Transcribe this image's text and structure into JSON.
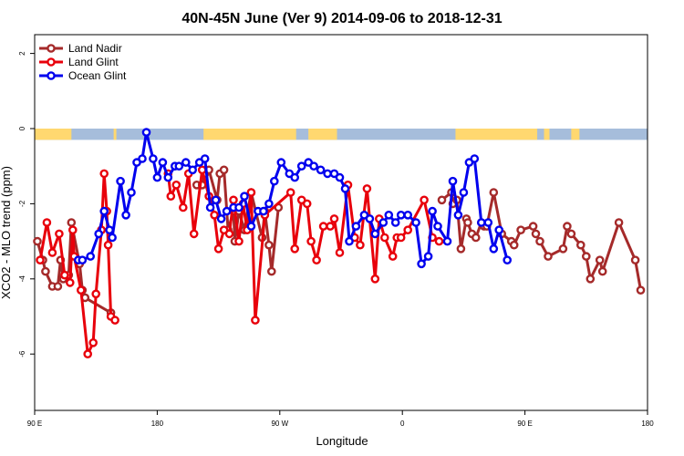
{
  "chart_data": {
    "type": "line",
    "title": "40N-45N June (Ver 9)   2014-09-06 to 2018-12-31",
    "xlabel": "Longitude",
    "ylabel": "XCO2 - MLO trend (ppm)",
    "x_ticks": [
      {
        "value": 90,
        "label": "90 E"
      },
      {
        "value": 180,
        "label": "180"
      },
      {
        "value": 270,
        "label": "90 W"
      },
      {
        "value": 360,
        "label": "0"
      },
      {
        "value": 450,
        "label": "90 E"
      },
      {
        "value": 540,
        "label": "180"
      }
    ],
    "y_ticks": [
      {
        "value": 2,
        "label": "2"
      },
      {
        "value": 0,
        "label": "0"
      },
      {
        "value": -2,
        "label": "-2"
      },
      {
        "value": -4,
        "label": "-4"
      },
      {
        "value": -6,
        "label": "-6"
      }
    ],
    "xlim": [
      90,
      540
    ],
    "ylim": [
      -7.5,
      2.5
    ],
    "grid": false,
    "legend_position": "top-left",
    "land_mask_band": {
      "y_top": 0.0,
      "y_bottom": -0.3,
      "land_color": "#ffd870",
      "ocean_color": "#a6bddb",
      "land_ranges": [
        [
          90,
          117
        ],
        [
          148,
          150
        ],
        [
          214,
          282
        ],
        [
          291,
          312
        ],
        [
          399,
          459
        ],
        [
          464,
          468
        ],
        [
          484,
          490
        ]
      ]
    },
    "series": [
      {
        "name": "Land Nadir",
        "color": "#a52a2a",
        "x": [
          92,
          96,
          98,
          103,
          107,
          109,
          111,
          115,
          117,
          123,
          125,
          127,
          146,
          209,
          213,
          215,
          218,
          224,
          226,
          229,
          232,
          236,
          237,
          240,
          244,
          249,
          257,
          259,
          262,
          264,
          269,
          389,
          396,
          397,
          400,
          403,
          407,
          408,
          411,
          414,
          418,
          420,
          422,
          427,
          433,
          440,
          442,
          447,
          456,
          458,
          461,
          467,
          478,
          481,
          484,
          491,
          495,
          498,
          505,
          507,
          519,
          531,
          535
        ],
        "y": [
          -3.0,
          -3.5,
          -3.8,
          -4.2,
          -4.2,
          -3.5,
          -4.0,
          -3.9,
          -2.5,
          -3.6,
          -4.3,
          -4.5,
          -4.9,
          -1.5,
          -1.5,
          -1.2,
          -1.1,
          -1.9,
          -1.2,
          -1.1,
          -2.7,
          -2.2,
          -3.0,
          -2.2,
          -2.7,
          -1.7,
          -2.9,
          -2.2,
          -3.1,
          -3.8,
          -2.1,
          -1.9,
          -1.7,
          -2.0,
          -1.9,
          -3.2,
          -2.4,
          -2.5,
          -2.8,
          -2.9,
          -2.5,
          -2.6,
          -2.6,
          -1.7,
          -2.8,
          -3.0,
          -3.1,
          -2.7,
          -2.6,
          -2.8,
          -3.0,
          -3.4,
          -3.2,
          -2.6,
          -2.8,
          -3.1,
          -3.4,
          -4.0,
          -3.5,
          -3.8,
          -2.5,
          -3.5,
          -4.3
        ]
      },
      {
        "name": "Land Glint",
        "color": "#e8000b",
        "x": [
          94,
          99,
          103,
          108,
          112,
          116,
          118,
          119,
          124,
          129,
          133,
          135,
          139,
          141,
          143,
          144,
          146,
          149,
          188,
          190,
          194,
          199,
          203,
          207,
          213,
          218,
          222,
          225,
          229,
          233,
          236,
          240,
          243,
          246,
          249,
          252,
          259,
          278,
          281,
          286,
          290,
          293,
          297,
          302,
          307,
          310,
          314,
          320,
          325,
          329,
          334,
          340,
          343,
          347,
          353,
          356,
          359,
          364,
          376,
          382,
          387
        ],
        "y": [
          -3.5,
          -2.5,
          -3.3,
          -2.8,
          -3.9,
          -4.1,
          -2.7,
          -3.4,
          -4.3,
          -6.0,
          -5.7,
          -4.4,
          -2.7,
          -1.2,
          -2.2,
          -3.1,
          -5.0,
          -5.1,
          -1.2,
          -1.8,
          -1.5,
          -2.1,
          -1.2,
          -2.8,
          -1.1,
          -1.8,
          -2.3,
          -3.2,
          -2.7,
          -2.8,
          -1.9,
          -3.0,
          -2.0,
          -2.7,
          -1.7,
          -5.1,
          -2.3,
          -1.7,
          -3.2,
          -1.9,
          -2.0,
          -3.0,
          -3.5,
          -2.6,
          -2.6,
          -2.4,
          -3.3,
          -1.5,
          -2.9,
          -3.1,
          -1.6,
          -4.0,
          -2.4,
          -2.9,
          -3.4,
          -2.9,
          -2.9,
          -2.7,
          -1.9,
          -2.9,
          -3.0
        ]
      },
      {
        "name": "Ocean Glint",
        "color": "#0000ee",
        "x": [
          122,
          125,
          131,
          137,
          141,
          145,
          147,
          153,
          157,
          161,
          165,
          169,
          172,
          177,
          180,
          184,
          188,
          193,
          196,
          201,
          206,
          211,
          215,
          219,
          223,
          227,
          231,
          236,
          240,
          244,
          249,
          254,
          258,
          262,
          266,
          271,
          277,
          281,
          286,
          291,
          295,
          300,
          305,
          310,
          314,
          318,
          321,
          326,
          332,
          336,
          340,
          346,
          350,
          355,
          359,
          364,
          370,
          374,
          379,
          382,
          386,
          393,
          397,
          401,
          405,
          409,
          413,
          418,
          423,
          427,
          431,
          437
        ],
        "y": [
          -3.5,
          -3.5,
          -3.4,
          -2.8,
          -2.2,
          -2.7,
          -2.9,
          -1.4,
          -2.3,
          -1.7,
          -0.9,
          -0.8,
          -0.1,
          -0.8,
          -1.3,
          -0.9,
          -1.3,
          -1.0,
          -1.0,
          -0.9,
          -1.1,
          -0.9,
          -0.8,
          -2.1,
          -1.9,
          -2.4,
          -2.2,
          -2.1,
          -2.1,
          -1.8,
          -2.6,
          -2.2,
          -2.2,
          -2.0,
          -1.4,
          -0.9,
          -1.2,
          -1.3,
          -1.0,
          -0.9,
          -1.0,
          -1.1,
          -1.2,
          -1.2,
          -1.3,
          -1.6,
          -3.0,
          -2.6,
          -2.3,
          -2.4,
          -2.8,
          -2.5,
          -2.3,
          -2.5,
          -2.3,
          -2.3,
          -2.5,
          -3.6,
          -3.4,
          -2.2,
          -2.6,
          -3.0,
          -1.4,
          -2.3,
          -1.7,
          -0.9,
          -0.8,
          -2.5,
          -2.5,
          -3.2,
          -2.7,
          -3.5
        ]
      }
    ]
  }
}
